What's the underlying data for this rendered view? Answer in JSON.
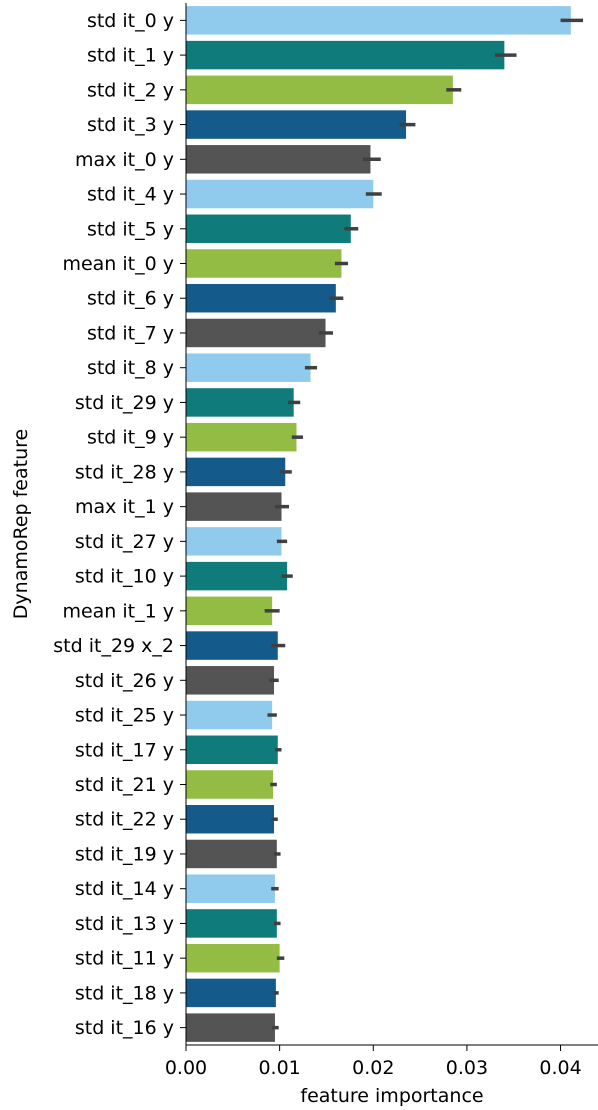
{
  "chart_data": {
    "type": "bar",
    "orientation": "horizontal",
    "xlabel": "feature importance",
    "ylabel": "DynamoRep feature",
    "xlim": [
      0,
      0.044
    ],
    "xticks": [
      "0.00",
      "0.01",
      "0.02",
      "0.03",
      "0.04"
    ],
    "xtick_values": [
      0,
      0.01,
      0.02,
      0.03,
      0.04
    ],
    "grid": false,
    "palette": [
      "#90cbee",
      "#107b7b",
      "#92bc44",
      "#145a8a",
      "#545454"
    ],
    "error_bar_color": "#404040",
    "categories": [
      "std it_0 y",
      "std it_1 y",
      "std it_2 y",
      "std it_3 y",
      "max it_0 y",
      "std it_4 y",
      "std it_5 y",
      "mean it_0 y",
      "std it_6 y",
      "std it_7 y",
      "std it_8 y",
      "std it_29 y",
      "std it_9 y",
      "std it_28 y",
      "max it_1 y",
      "std it_27 y",
      "std it_10 y",
      "mean it_1 y",
      "std it_29 x_2",
      "std it_26 y",
      "std it_25 y",
      "std it_17 y",
      "std it_21 y",
      "std it_22 y",
      "std it_19 y",
      "std it_14 y",
      "std it_13 y",
      "std it_11 y",
      "std it_18 y",
      "std it_16 y"
    ],
    "values": [
      0.0411,
      0.034,
      0.0285,
      0.0235,
      0.0197,
      0.02,
      0.0176,
      0.0166,
      0.016,
      0.0149,
      0.0133,
      0.0115,
      0.0118,
      0.0106,
      0.0102,
      0.0102,
      0.0108,
      0.0092,
      0.0098,
      0.0094,
      0.0092,
      0.0098,
      0.0093,
      0.0094,
      0.0097,
      0.0095,
      0.0097,
      0.01,
      0.0096,
      0.0095
    ],
    "error_low": [
      0.04,
      0.033,
      0.0278,
      0.0228,
      0.0189,
      0.0192,
      0.0169,
      0.0159,
      0.0153,
      0.0142,
      0.0127,
      0.0109,
      0.0113,
      0.0101,
      0.0095,
      0.0097,
      0.0102,
      0.0084,
      0.0091,
      0.0089,
      0.0087,
      0.0095,
      0.009,
      0.0091,
      0.0094,
      0.0091,
      0.0094,
      0.0097,
      0.0093,
      0.0092
    ],
    "error_high": [
      0.0424,
      0.0353,
      0.0294,
      0.0245,
      0.0208,
      0.0209,
      0.0184,
      0.0173,
      0.0168,
      0.0157,
      0.014,
      0.0122,
      0.0125,
      0.0113,
      0.011,
      0.0108,
      0.0114,
      0.01,
      0.0106,
      0.0099,
      0.0097,
      0.0102,
      0.0097,
      0.0098,
      0.0101,
      0.0099,
      0.0101,
      0.0105,
      0.0099,
      0.0099
    ]
  }
}
